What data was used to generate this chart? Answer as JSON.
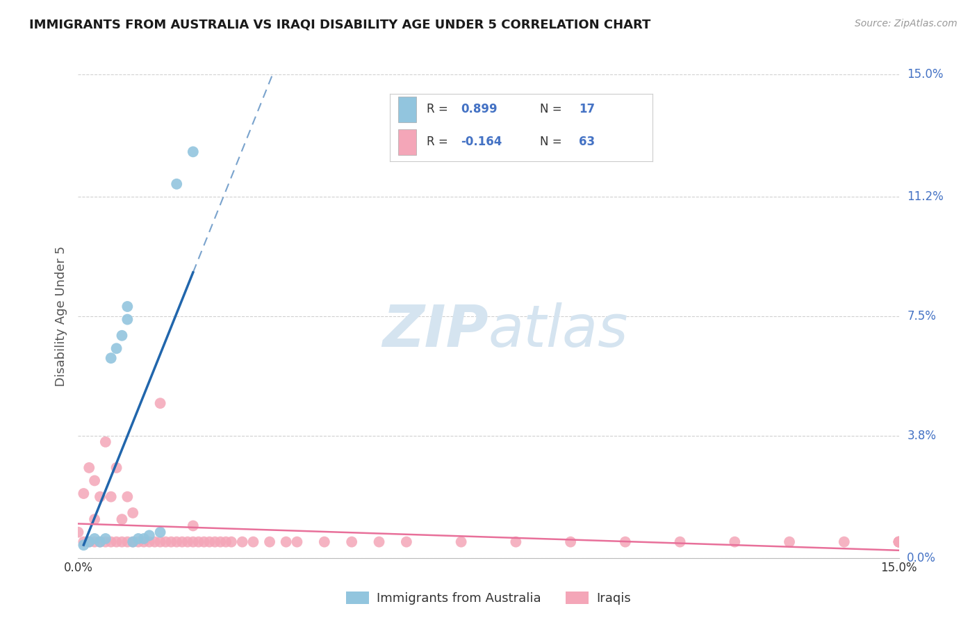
{
  "title": "IMMIGRANTS FROM AUSTRALIA VS IRAQI DISABILITY AGE UNDER 5 CORRELATION CHART",
  "source_text": "Source: ZipAtlas.com",
  "ylabel": "Disability Age Under 5",
  "xlim": [
    0.0,
    0.15
  ],
  "ylim": [
    0.0,
    0.15
  ],
  "xtick_positions": [
    0.0,
    0.15
  ],
  "xtick_labels": [
    "0.0%",
    "15.0%"
  ],
  "ytick_vals": [
    0.0,
    0.038,
    0.075,
    0.112,
    0.15
  ],
  "ytick_labels": [
    "0.0%",
    "3.8%",
    "7.5%",
    "11.2%",
    "15.0%"
  ],
  "r_australia": 0.899,
  "n_australia": 17,
  "r_iraqis": -0.164,
  "n_iraqis": 63,
  "color_australia": "#92c5de",
  "color_iraqis": "#f4a6b8",
  "line_color_australia": "#2166ac",
  "line_color_iraqis": "#e8709a",
  "watermark_color": "#d5e4f0",
  "background_color": "#ffffff",
  "grid_color": "#d0d0d0",
  "title_color": "#1a1a1a",
  "axis_label_color": "#555555",
  "tick_color_right": "#4472c4",
  "legend_text_color": "#333333",
  "legend_value_color": "#4472c4",
  "scatter_australia_x": [
    0.001,
    0.002,
    0.003,
    0.004,
    0.005,
    0.006,
    0.007,
    0.008,
    0.009,
    0.009,
    0.01,
    0.011,
    0.012,
    0.013,
    0.015,
    0.018,
    0.021
  ],
  "scatter_australia_y": [
    0.004,
    0.005,
    0.006,
    0.005,
    0.006,
    0.062,
    0.065,
    0.069,
    0.074,
    0.078,
    0.005,
    0.006,
    0.006,
    0.007,
    0.008,
    0.116,
    0.126
  ],
  "scatter_iraqis_x": [
    0.0,
    0.001,
    0.001,
    0.002,
    0.002,
    0.003,
    0.003,
    0.003,
    0.004,
    0.004,
    0.005,
    0.005,
    0.006,
    0.006,
    0.007,
    0.007,
    0.008,
    0.008,
    0.009,
    0.009,
    0.01,
    0.01,
    0.011,
    0.012,
    0.013,
    0.014,
    0.015,
    0.015,
    0.016,
    0.017,
    0.018,
    0.019,
    0.02,
    0.021,
    0.021,
    0.022,
    0.023,
    0.024,
    0.025,
    0.026,
    0.027,
    0.028,
    0.03,
    0.032,
    0.035,
    0.038,
    0.04,
    0.045,
    0.05,
    0.055,
    0.06,
    0.07,
    0.08,
    0.09,
    0.1,
    0.11,
    0.12,
    0.13,
    0.14,
    0.15,
    0.15,
    0.15,
    0.15
  ],
  "scatter_iraqis_y": [
    0.008,
    0.005,
    0.02,
    0.005,
    0.028,
    0.005,
    0.012,
    0.024,
    0.005,
    0.019,
    0.005,
    0.036,
    0.005,
    0.019,
    0.005,
    0.028,
    0.005,
    0.012,
    0.005,
    0.019,
    0.005,
    0.014,
    0.005,
    0.005,
    0.005,
    0.005,
    0.005,
    0.048,
    0.005,
    0.005,
    0.005,
    0.005,
    0.005,
    0.005,
    0.01,
    0.005,
    0.005,
    0.005,
    0.005,
    0.005,
    0.005,
    0.005,
    0.005,
    0.005,
    0.005,
    0.005,
    0.005,
    0.005,
    0.005,
    0.005,
    0.005,
    0.005,
    0.005,
    0.005,
    0.005,
    0.005,
    0.005,
    0.005,
    0.005,
    0.005,
    0.005,
    0.005,
    0.005
  ]
}
